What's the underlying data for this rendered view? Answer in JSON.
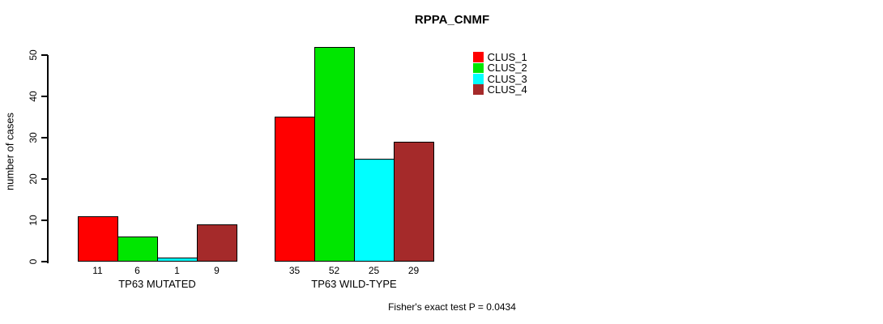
{
  "chart_data": {
    "type": "bar",
    "title": "RPPA_CNMF",
    "ylabel": "number of cases",
    "xlabel": "",
    "ylim": [
      0,
      50
    ],
    "yticks": [
      0,
      10,
      20,
      30,
      40,
      50
    ],
    "grid": "off",
    "legend_position": "top-right",
    "categories": [
      "TP63 MUTATED",
      "TP63 WILD-TYPE"
    ],
    "series": [
      {
        "name": "CLUS_1",
        "color": "#ff0000",
        "values": [
          11,
          35
        ]
      },
      {
        "name": "CLUS_2",
        "color": "#00e600",
        "values": [
          6,
          52
        ]
      },
      {
        "name": "CLUS_3",
        "color": "#00ffff",
        "values": [
          1,
          25
        ]
      },
      {
        "name": "CLUS_4",
        "color": "#a52a2a",
        "values": [
          9,
          29
        ]
      }
    ],
    "bar_value_labels": [
      [
        11,
        6,
        1,
        9
      ],
      [
        35,
        52,
        25,
        29
      ]
    ],
    "annotation": "Fisher's exact test P = 0.0434"
  }
}
